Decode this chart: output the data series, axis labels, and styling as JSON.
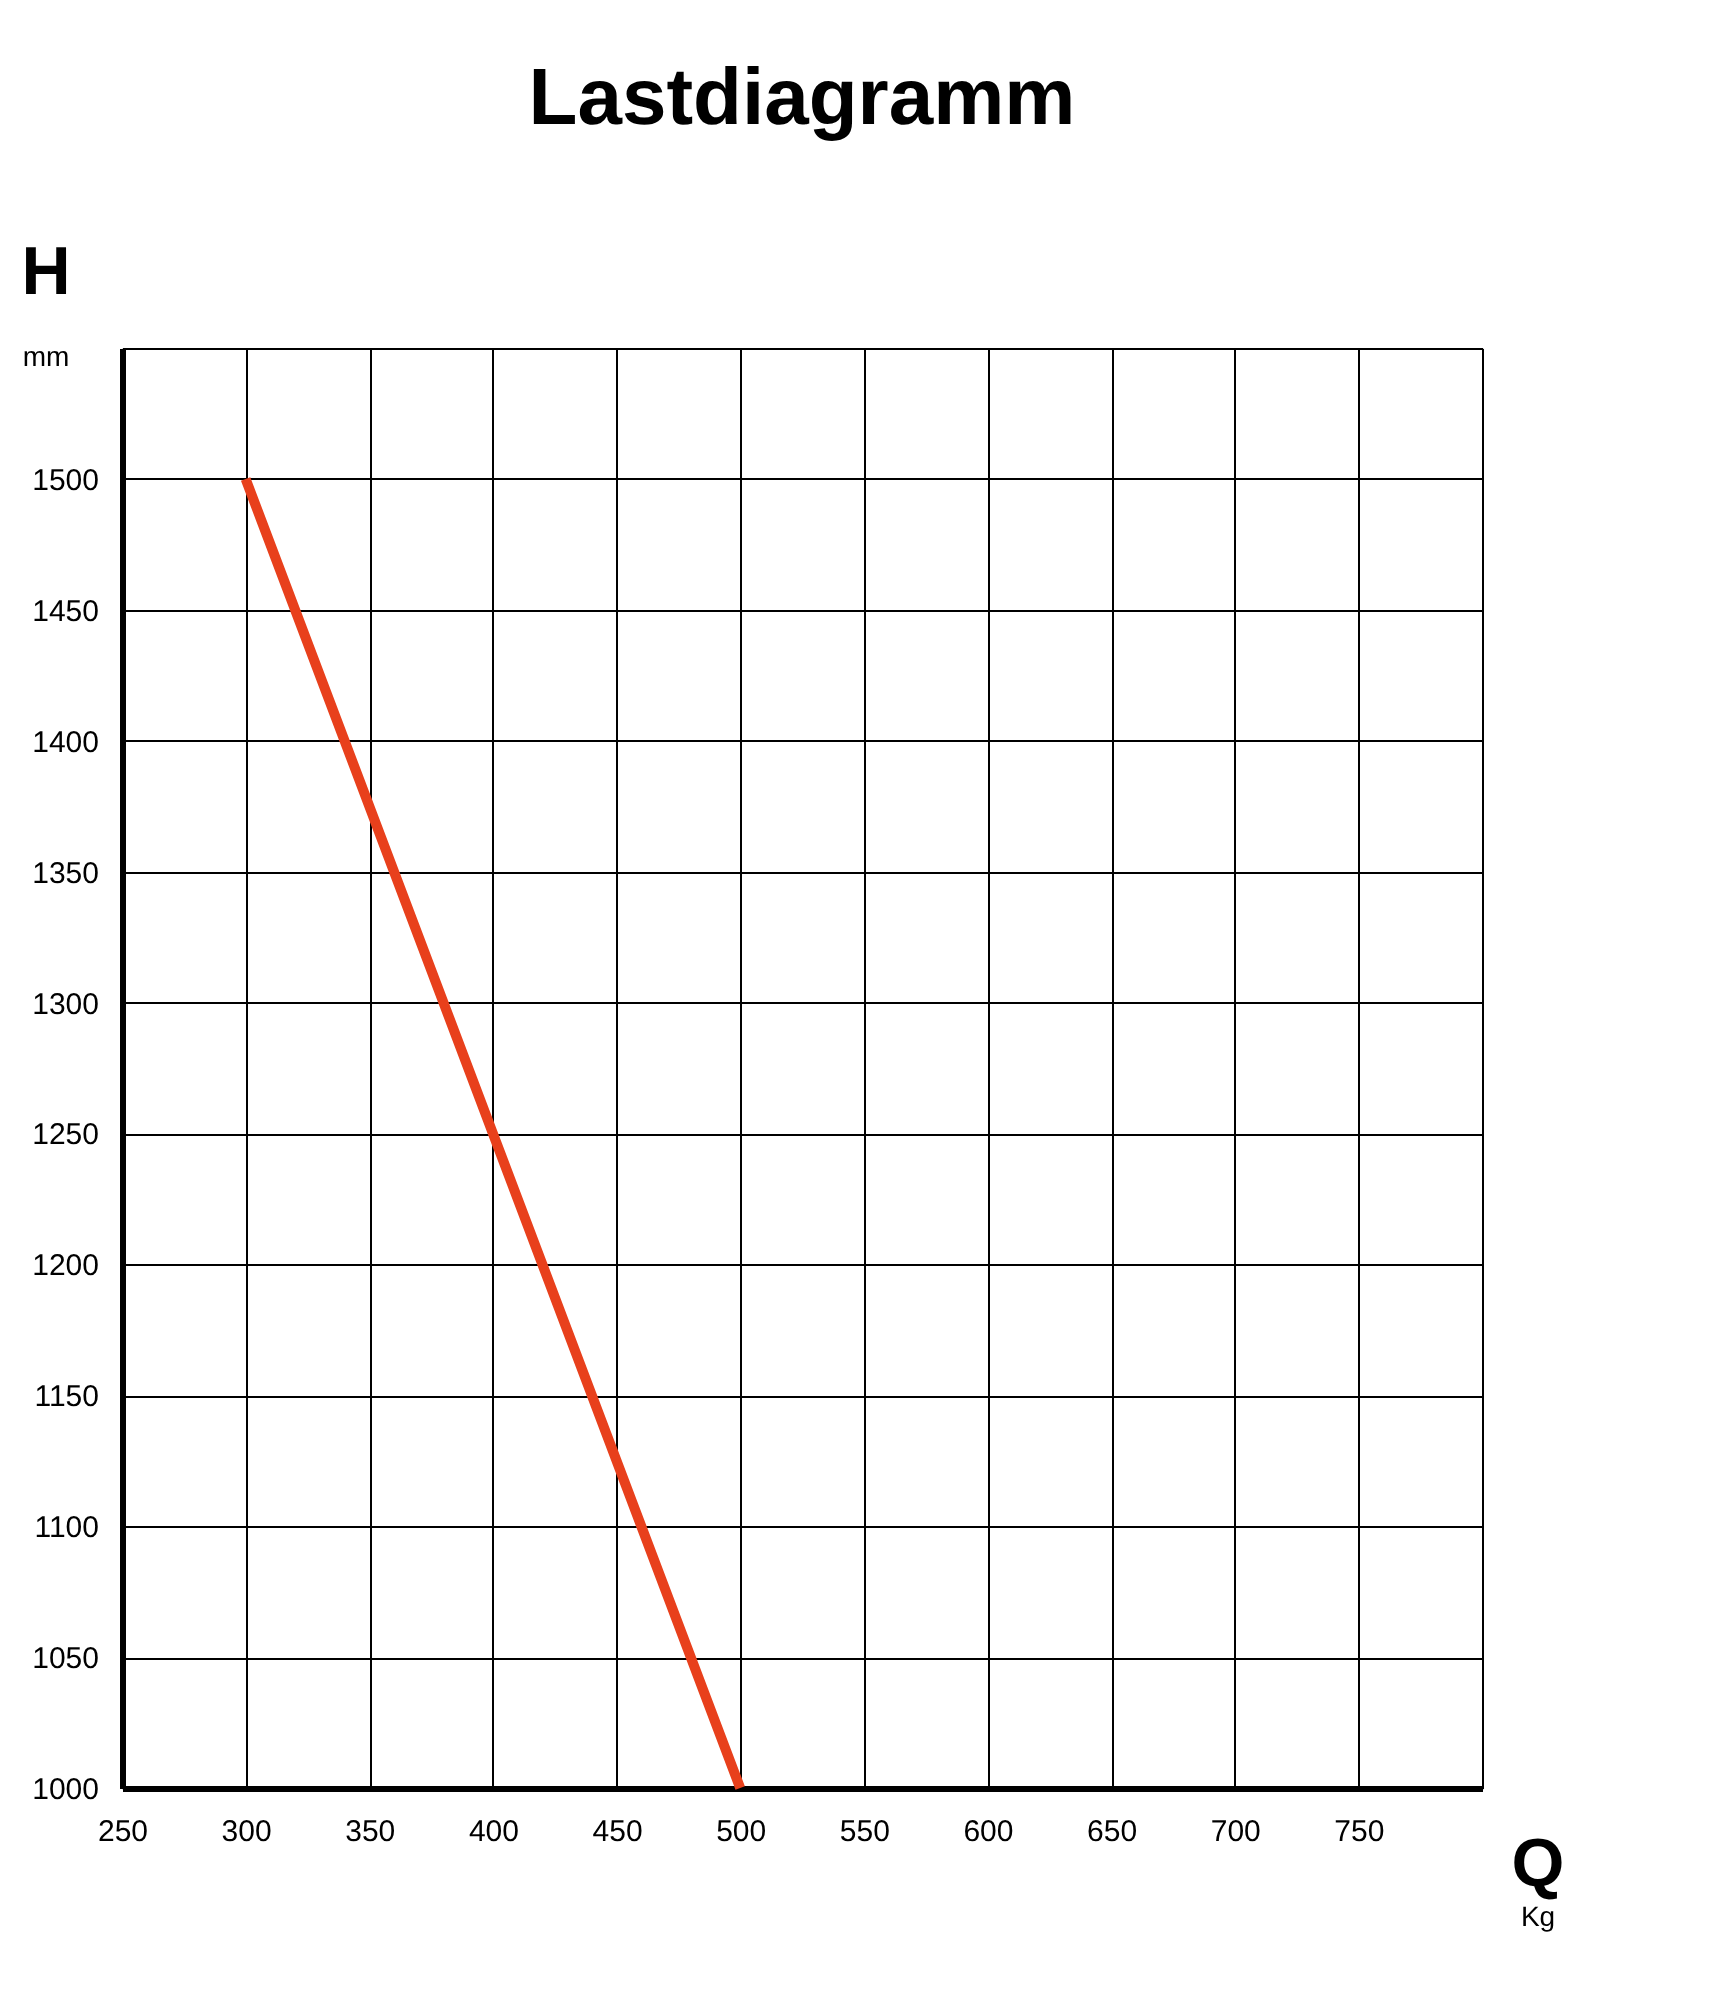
{
  "chart_data": {
    "type": "line",
    "title": "Lastdiagramm",
    "xlabel": "Q",
    "ylabel": "H",
    "annotations": [
      "mm",
      "Kg"
    ],
    "x": [
      300,
      400,
      500
    ],
    "series": [
      {
        "color": "#e8401c",
        "values": [
          1500,
          1250,
          1000
        ]
      }
    ],
    "xlim": [
      250,
      800
    ],
    "xticks": [
      250,
      300,
      350,
      400,
      450,
      500,
      550,
      600,
      650,
      700,
      750,
      {
        "value": 800,
        "label": null
      }
    ],
    "ylim": [
      1000,
      1550
    ],
    "yticks": [
      1000,
      1050,
      1100,
      1150,
      1200,
      1250,
      1300,
      1350,
      1400,
      1450,
      1500,
      {
        "value": 1550,
        "label": null
      }
    ],
    "grid": true,
    "marker": "none",
    "line_style": "solid"
  }
}
